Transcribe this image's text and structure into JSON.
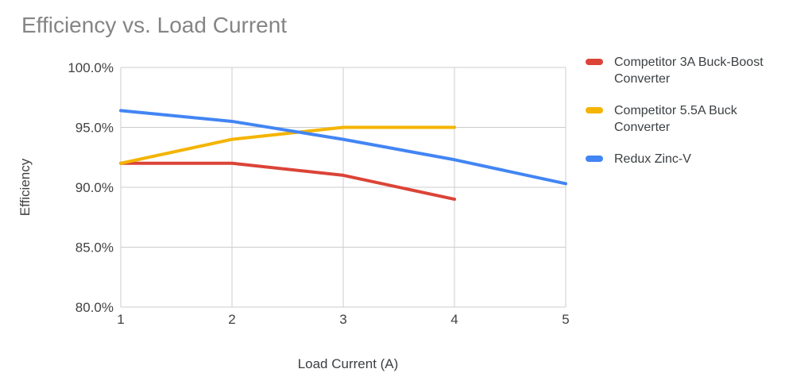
{
  "title": "Efficiency vs. Load Current",
  "colors": {
    "background": "#ffffff",
    "title_text": "#858585",
    "tick_text": "#424242",
    "grid": "#cccccc",
    "series_red": "#DB4437",
    "series_yellow": "#F4B400",
    "series_blue": "#4285F4"
  },
  "chart_data": {
    "type": "line",
    "title": "Efficiency vs. Load Current",
    "xlabel": "Load Current (A)",
    "ylabel": "Efficiency",
    "xlim": [
      1,
      5
    ],
    "ylim": [
      80,
      100
    ],
    "x_ticks": [
      1,
      2,
      3,
      4,
      5
    ],
    "y_ticks": [
      100,
      95,
      90,
      85,
      80
    ],
    "y_tick_labels": [
      "100.0%",
      "95.0%",
      "90.0%",
      "85.0%",
      "80.0%"
    ],
    "grid": true,
    "legend_position": "right",
    "series": [
      {
        "name": "Competitor 3A Buck-Boost Converter",
        "color": "#DB4437",
        "x": [
          1,
          2,
          3,
          4
        ],
        "values": [
          92.0,
          92.0,
          91.0,
          89.0
        ]
      },
      {
        "name": "Competitor 5.5A Buck Converter",
        "color": "#F4B400",
        "x": [
          1,
          2,
          3,
          4
        ],
        "values": [
          92.0,
          94.0,
          95.0,
          95.0
        ]
      },
      {
        "name": "Redux Zinc-V",
        "color": "#4285F4",
        "x": [
          1,
          2,
          3,
          4,
          5
        ],
        "values": [
          96.4,
          95.5,
          94.0,
          92.3,
          90.3
        ]
      }
    ]
  }
}
